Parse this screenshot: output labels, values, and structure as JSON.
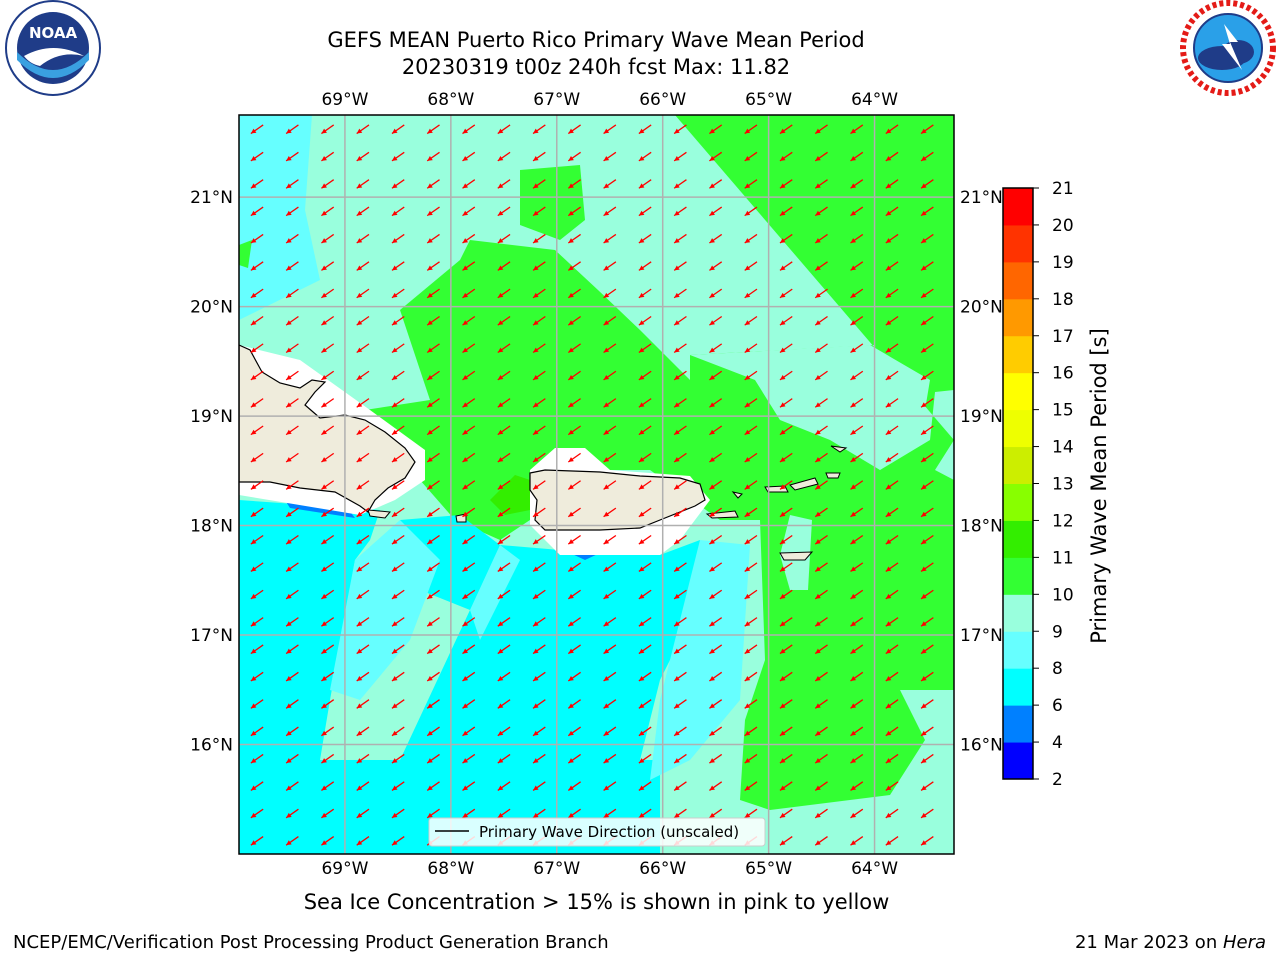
{
  "header": {
    "title_line1": "GEFS MEAN Puerto Rico Primary Wave Mean Period",
    "title_line2": "20230319 t00z 240h fcst   Max: 11.82"
  },
  "logos": {
    "left": {
      "name": "noaa-logo",
      "text": "NOAA",
      "ring_text": "NATIONAL OCEANIC AND ATMOSPHERIC ADMINISTRATION · U.S. DEPARTMENT OF COMMERCE"
    },
    "right": {
      "name": "nws-logo",
      "ring_text": "NATIONAL WEATHER SERVICE"
    }
  },
  "map": {
    "lon_labels": [
      "69°W",
      "68°W",
      "67°W",
      "66°W",
      "65°W",
      "64°W"
    ],
    "lat_labels": [
      "21°N",
      "20°N",
      "19°N",
      "18°N",
      "17°N",
      "16°N"
    ],
    "lon_values": [
      -69,
      -68,
      -67,
      -66,
      -65,
      -64
    ],
    "lat_values": [
      21,
      20,
      19,
      18,
      17,
      16
    ],
    "extent": {
      "lon_min": -70.0,
      "lon_max": -63.25,
      "lat_min": 15.0,
      "lat_max": 21.75
    },
    "wave_direction": {
      "from_bearing_deg": 55,
      "grid_lon_step": 0.333,
      "grid_lat_step": 0.25
    },
    "legend_label": "Primary Wave Direction (unscaled)",
    "arrow_color": "#ff0000",
    "land_color": "#efecdc"
  },
  "colorbar": {
    "label": "Primary Wave Mean Period [s]",
    "tick_labels": [
      "2",
      "4",
      "6",
      "8",
      "9",
      "10",
      "11",
      "12",
      "13",
      "14",
      "15",
      "16",
      "17",
      "18",
      "19",
      "20",
      "21"
    ],
    "bins": [
      {
        "from": 2,
        "to": 4,
        "color": "#0000ff"
      },
      {
        "from": 4,
        "to": 6,
        "color": "#0080ff"
      },
      {
        "from": 6,
        "to": 8,
        "color": "#00ffff"
      },
      {
        "from": 8,
        "to": 9,
        "color": "#66ffff"
      },
      {
        "from": 9,
        "to": 10,
        "color": "#99ffdd"
      },
      {
        "from": 10,
        "to": 11,
        "color": "#33ff33"
      },
      {
        "from": 11,
        "to": 12,
        "color": "#33ee00"
      },
      {
        "from": 12,
        "to": 13,
        "color": "#88ff00"
      },
      {
        "from": 13,
        "to": 14,
        "color": "#ccee00"
      },
      {
        "from": 14,
        "to": 15,
        "color": "#eeff00"
      },
      {
        "from": 15,
        "to": 16,
        "color": "#ffff00"
      },
      {
        "from": 16,
        "to": 17,
        "color": "#ffcc00"
      },
      {
        "from": 17,
        "to": 18,
        "color": "#ff9900"
      },
      {
        "from": 18,
        "to": 19,
        "color": "#ff6600"
      },
      {
        "from": 19,
        "to": 20,
        "color": "#ff3300"
      },
      {
        "from": 20,
        "to": 21,
        "color": "#ff0000"
      }
    ]
  },
  "notes": {
    "sea_ice": "Sea Ice Concentration > 15% is shown in pink to yellow"
  },
  "footer": {
    "left": "NCEP/EMC/Verification Post Processing Product Generation Branch",
    "right_prefix": "21 Mar 2023 on ",
    "right_host": "Hera"
  }
}
